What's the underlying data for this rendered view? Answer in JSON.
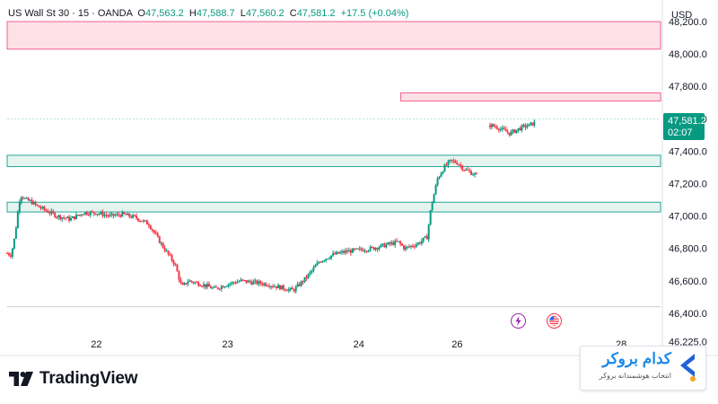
{
  "header": {
    "symbol": "US Wall St 30 · 15 · OANDA",
    "o_label": "O",
    "o_value": "47,563.2",
    "h_label": "H",
    "h_value": "47,588.7",
    "l_label": "L",
    "l_value": "47,560.2",
    "c_label": "C",
    "c_value": "47,581.2",
    "change": "+17.5 (+0.04%)"
  },
  "currency": "USD",
  "price_tag": {
    "price": "47,581.2",
    "countdown": "02:07"
  },
  "brand": {
    "name": "TradingView"
  },
  "watermark": {
    "title": "کدام بروکر",
    "subtitle": "انتخاب هوشمندانه بروکر"
  },
  "colors": {
    "up": "#089981",
    "down": "#f23645",
    "zone_red_fill": "#fde1e6",
    "zone_red_stroke": "#f06292",
    "zone_green_fill": "#e6f4ef",
    "zone_green_stroke": "#26a69a",
    "tag_bg": "#089981"
  },
  "events": [
    {
      "icon": "lightning-icon",
      "color": "#9c27b0"
    },
    {
      "icon": "us-flag-icon",
      "color": "#f23645"
    }
  ],
  "chart_data": {
    "type": "candlestick",
    "symbol": "US Wall St 30",
    "interval": "15",
    "yaxis": {
      "ticks": [
        48200,
        48000,
        47800,
        47600,
        47400,
        47200,
        47000,
        46800,
        46600,
        46400,
        46225
      ],
      "tick_labels": [
        "48,200.0",
        "48,000.0",
        "47,800.0",
        "47,600.0",
        "47,400.0",
        "47,200.0",
        "47,000.0",
        "46,800.0",
        "46,600.0",
        "46,400.0",
        "46,225.0"
      ],
      "ylim": [
        46150,
        48300
      ]
    },
    "xaxis": {
      "ticks": [
        {
          "label": "22",
          "t": 0.5
        },
        {
          "label": "23",
          "t": 1.5
        },
        {
          "label": "24",
          "t": 2.5
        },
        {
          "label": "26",
          "t": 3.25
        },
        {
          "label": "28",
          "t": 4.5
        }
      ],
      "xlim": [
        -0.18,
        4.8
      ]
    },
    "last_price": 47581.2,
    "zones": [
      {
        "kind": "red",
        "from": 48030,
        "to": 48200
      },
      {
        "kind": "red",
        "from": 47710,
        "to": 47760
      },
      {
        "kind": "green",
        "from": 47305,
        "to": 47375
      },
      {
        "kind": "green",
        "from": 47025,
        "to": 47085
      }
    ],
    "lines": [
      47600,
      46440
    ],
    "path": [
      {
        "t": -0.18,
        "p": 46770
      },
      {
        "t": -0.15,
        "p": 46760
      },
      {
        "t": -0.12,
        "p": 46880
      },
      {
        "t": -0.1,
        "p": 47020
      },
      {
        "t": -0.08,
        "p": 47130
      },
      {
        "t": -0.06,
        "p": 47120
      },
      {
        "t": -0.04,
        "p": 47100
      },
      {
        "t": 0.0,
        "p": 47090
      },
      {
        "t": 0.05,
        "p": 47060
      },
      {
        "t": 0.1,
        "p": 47040
      },
      {
        "t": 0.2,
        "p": 47000
      },
      {
        "t": 0.3,
        "p": 46980
      },
      {
        "t": 0.4,
        "p": 47020
      },
      {
        "t": 0.5,
        "p": 47020
      },
      {
        "t": 0.6,
        "p": 47000
      },
      {
        "t": 0.7,
        "p": 47010
      },
      {
        "t": 0.8,
        "p": 46990
      },
      {
        "t": 0.9,
        "p": 46950
      },
      {
        "t": 1.0,
        "p": 46820
      },
      {
        "t": 1.1,
        "p": 46700
      },
      {
        "t": 1.15,
        "p": 46560
      },
      {
        "t": 1.2,
        "p": 46600
      },
      {
        "t": 1.3,
        "p": 46580
      },
      {
        "t": 1.4,
        "p": 46550
      },
      {
        "t": 1.5,
        "p": 46580
      },
      {
        "t": 1.6,
        "p": 46600
      },
      {
        "t": 1.7,
        "p": 46590
      },
      {
        "t": 1.8,
        "p": 46580
      },
      {
        "t": 1.9,
        "p": 46560
      },
      {
        "t": 2.0,
        "p": 46540
      },
      {
        "t": 2.1,
        "p": 46620
      },
      {
        "t": 2.2,
        "p": 46720
      },
      {
        "t": 2.3,
        "p": 46760
      },
      {
        "t": 2.4,
        "p": 46780
      },
      {
        "t": 2.5,
        "p": 46790
      },
      {
        "t": 2.6,
        "p": 46800
      },
      {
        "t": 2.7,
        "p": 46820
      },
      {
        "t": 2.8,
        "p": 46840
      },
      {
        "t": 2.85,
        "p": 46800
      },
      {
        "t": 2.95,
        "p": 46830
      },
      {
        "t": 3.02,
        "p": 46870
      },
      {
        "t": 3.05,
        "p": 47050
      },
      {
        "t": 3.1,
        "p": 47230
      },
      {
        "t": 3.15,
        "p": 47300
      },
      {
        "t": 3.2,
        "p": 47340
      },
      {
        "t": 3.25,
        "p": 47330
      },
      {
        "t": 3.3,
        "p": 47290
      },
      {
        "t": 3.35,
        "p": 47270
      },
      {
        "t": 3.4,
        "p": 47250
      }
    ],
    "path2": [
      {
        "t": 3.5,
        "p": 47560
      },
      {
        "t": 3.55,
        "p": 47550
      },
      {
        "t": 3.6,
        "p": 47530
      },
      {
        "t": 3.65,
        "p": 47510
      },
      {
        "t": 3.7,
        "p": 47530
      },
      {
        "t": 3.75,
        "p": 47550
      },
      {
        "t": 3.8,
        "p": 47560
      },
      {
        "t": 3.85,
        "p": 47580
      }
    ]
  }
}
